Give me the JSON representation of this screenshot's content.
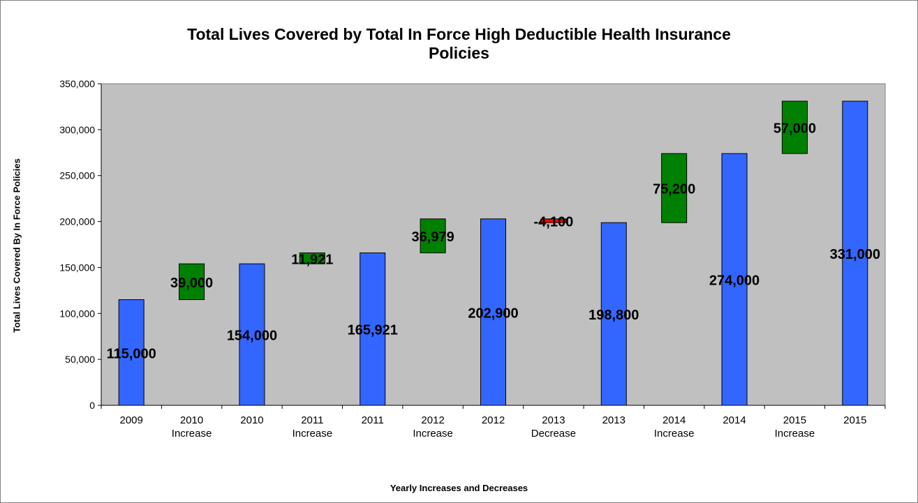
{
  "chart_data": {
    "type": "bar",
    "subtype": "waterfall",
    "title": [
      "Total Lives Covered by Total In Force High Deductible Health Insurance",
      "Policies"
    ],
    "xlabel": "Yearly Increases and Decreases",
    "ylabel": "Total Lives Covered By In Force Policies",
    "ylim": [
      0,
      350000
    ],
    "yticks": [
      "0",
      "50,000",
      "100,000",
      "150,000",
      "200,000",
      "250,000",
      "300,000",
      "350,000"
    ],
    "ytick_values": [
      0,
      50000,
      100000,
      150000,
      200000,
      250000,
      300000,
      350000
    ],
    "grid": false,
    "plot_background": "#c0c0c0",
    "colors": {
      "total": "#3366ff",
      "increase": "#008000",
      "decrease": "#ff0000"
    },
    "bars": [
      {
        "label": [
          "2009"
        ],
        "kind": "total",
        "start": 0,
        "end": 115000,
        "value_label": "115,000"
      },
      {
        "label": [
          "2010",
          "Increase"
        ],
        "kind": "increase",
        "start": 115000,
        "end": 154000,
        "value_label": "39,000"
      },
      {
        "label": [
          "2010"
        ],
        "kind": "total",
        "start": 0,
        "end": 154000,
        "value_label": "154,000"
      },
      {
        "label": [
          "2011",
          "Increase"
        ],
        "kind": "increase",
        "start": 154000,
        "end": 165921,
        "value_label": "11,921"
      },
      {
        "label": [
          "2011"
        ],
        "kind": "total",
        "start": 0,
        "end": 165921,
        "value_label": "165,921"
      },
      {
        "label": [
          "2012",
          "Increase"
        ],
        "kind": "increase",
        "start": 165921,
        "end": 202900,
        "value_label": "36,979"
      },
      {
        "label": [
          "2012"
        ],
        "kind": "total",
        "start": 0,
        "end": 202900,
        "value_label": "202,900"
      },
      {
        "label": [
          "2013",
          "Decrease"
        ],
        "kind": "decrease",
        "start": 198800,
        "end": 202900,
        "value_label": "-4,100"
      },
      {
        "label": [
          "2013"
        ],
        "kind": "total",
        "start": 0,
        "end": 198800,
        "value_label": "198,800"
      },
      {
        "label": [
          "2014",
          "Increase"
        ],
        "kind": "increase",
        "start": 198800,
        "end": 274000,
        "value_label": "75,200"
      },
      {
        "label": [
          "2014"
        ],
        "kind": "total",
        "start": 0,
        "end": 274000,
        "value_label": "274,000"
      },
      {
        "label": [
          "2015",
          "Increase"
        ],
        "kind": "increase",
        "start": 274000,
        "end": 331000,
        "value_label": "57,000"
      },
      {
        "label": [
          "2015"
        ],
        "kind": "total",
        "start": 0,
        "end": 331000,
        "value_label": "331,000"
      }
    ]
  }
}
